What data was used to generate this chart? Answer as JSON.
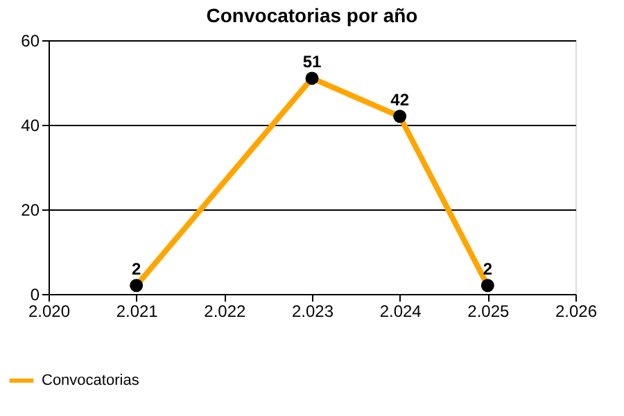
{
  "chart_data": {
    "type": "line",
    "title": "Convocatorias por año",
    "x": [
      2021,
      2023,
      2024,
      2025
    ],
    "series": [
      {
        "name": "Convocatorias",
        "color": "#ffa500",
        "values": [
          2,
          51,
          42,
          2
        ]
      }
    ],
    "xlim": [
      2020,
      2026
    ],
    "xticks": [
      {
        "value": 2020,
        "label": "2.020"
      },
      {
        "value": 2021,
        "label": "2.021"
      },
      {
        "value": 2022,
        "label": "2.022"
      },
      {
        "value": 2023,
        "label": "2.023"
      },
      {
        "value": 2024,
        "label": "2.024"
      },
      {
        "value": 2025,
        "label": "2.025"
      },
      {
        "value": 2026,
        "label": "2.026"
      }
    ],
    "ylim": [
      0,
      60
    ],
    "yticks": [
      0,
      20,
      40,
      60
    ],
    "grid": "y",
    "legend": "bottom left",
    "marker": "circle",
    "line_style": "solid",
    "data_labels": true
  }
}
